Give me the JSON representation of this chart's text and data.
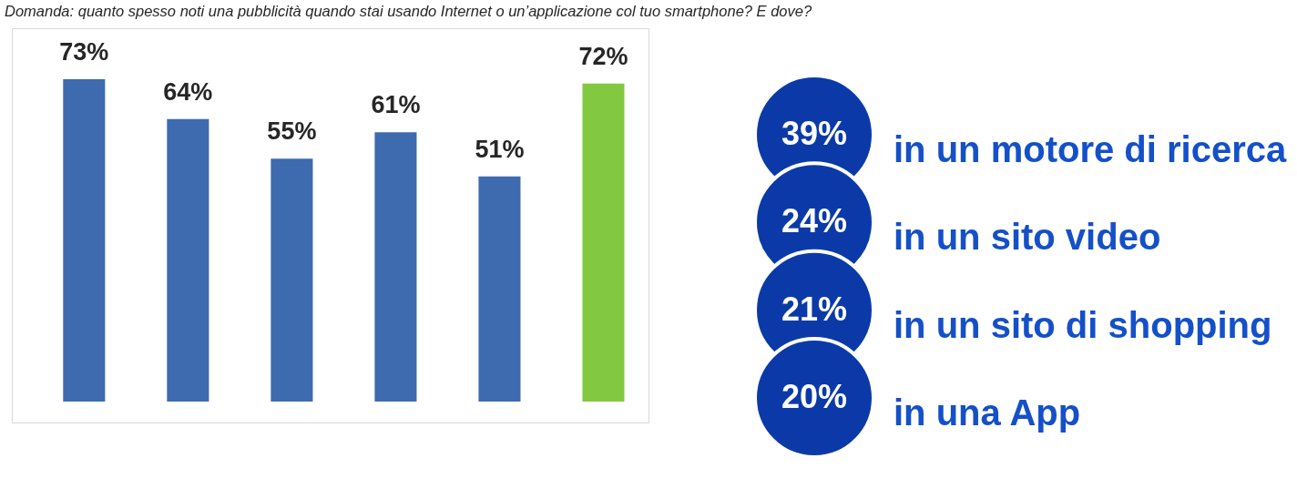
{
  "chart_data": [
    {
      "type": "bar",
      "title": "Domanda: quanto spesso noti una pubblicità quando stai usando Internet o un’applicazione col tuo smartphone? E dove?",
      "categories": [
        null,
        null,
        null,
        null,
        null,
        null
      ],
      "values": [
        73,
        64,
        55,
        61,
        51,
        72
      ],
      "colors": [
        "#3e6baf",
        "#3e6baf",
        "#3e6baf",
        "#3e6baf",
        "#3e6baf",
        "#82c941"
      ],
      "value_labels": [
        "73%",
        "64%",
        "55%",
        "61%",
        "51%",
        "72%"
      ],
      "tick_labels": false
    },
    {
      "type": "other",
      "categories": [
        "in un motore di ricerca",
        "in un sito video",
        "in un sito di shopping",
        "in una App"
      ],
      "values": [
        39,
        24,
        21,
        20
      ],
      "value_labels": [
        "39%",
        "24%",
        "21%",
        "20%"
      ],
      "color": "#0b3aa8"
    }
  ]
}
